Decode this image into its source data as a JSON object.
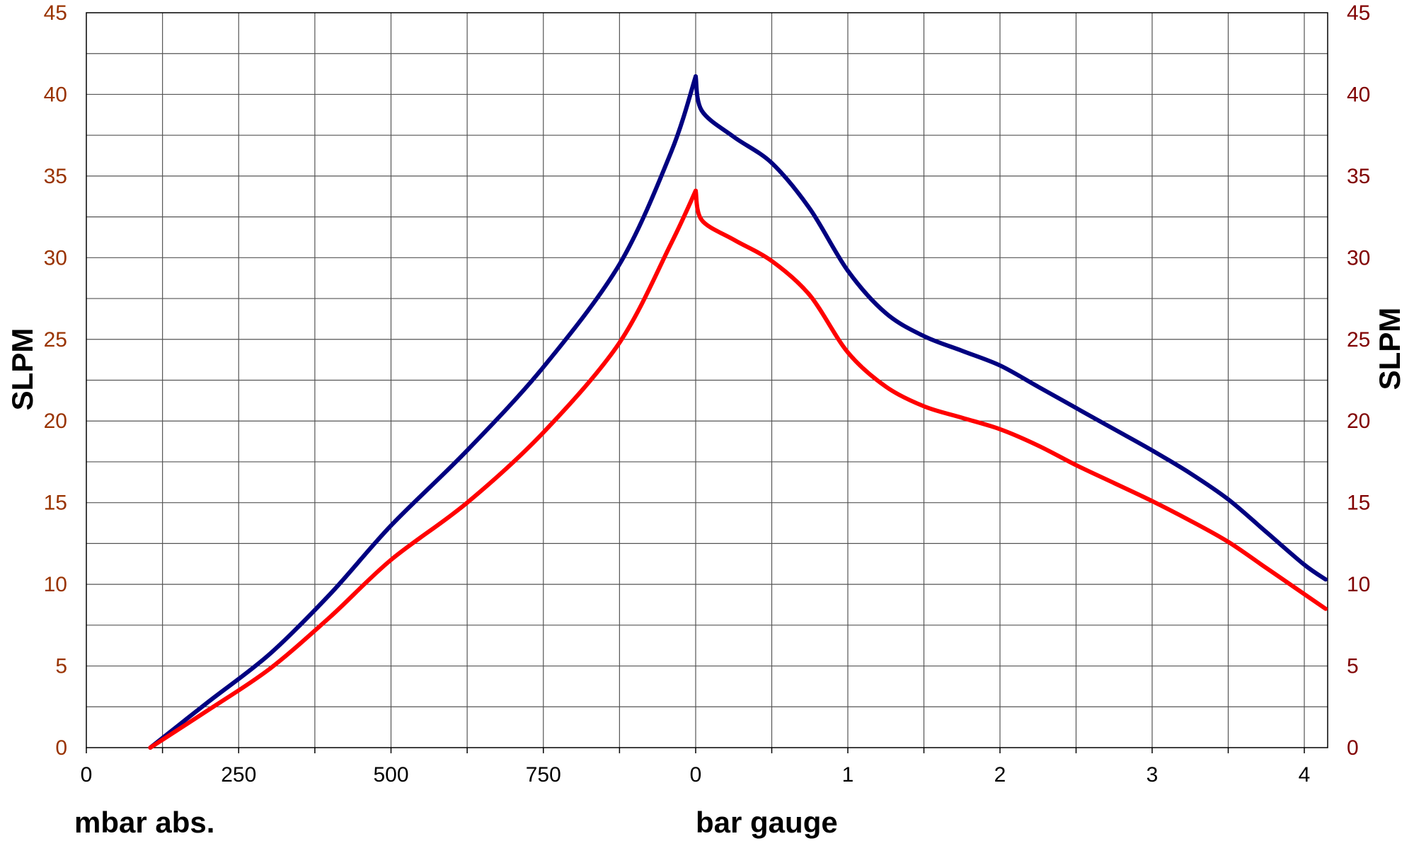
{
  "chart_data": {
    "type": "line",
    "y_axis": {
      "label_left": "SLPM",
      "label_right": "SLPM",
      "ylim": [
        0,
        45
      ],
      "ticks": [
        "0",
        "5",
        "10",
        "15",
        "20",
        "25",
        "30",
        "35",
        "40",
        "45"
      ],
      "left_tick_color": "#993300",
      "right_tick_color": "#800000"
    },
    "x_axis": {
      "vacuum_label": "mbar abs.",
      "vacuum_range": [
        0,
        1000
      ],
      "vacuum_ticks": [
        "0",
        "250",
        "500",
        "750"
      ],
      "pressure_label": "bar gauge",
      "pressure_range": [
        0,
        4.14
      ],
      "pressure_ticks": [
        "0",
        "1",
        "2",
        "3",
        "4"
      ]
    },
    "grid": true,
    "series": [
      {
        "color": "#000080",
        "vacuum_points": [
          [
            105,
            0
          ],
          [
            200,
            2.8
          ],
          [
            300,
            5.7
          ],
          [
            400,
            9.4
          ],
          [
            500,
            13.6
          ],
          [
            625,
            18.2
          ],
          [
            750,
            23.3
          ],
          [
            875,
            29.6
          ],
          [
            960,
            36.5
          ],
          [
            1000,
            41.1
          ]
        ],
        "pressure_points": [
          [
            0,
            41.1
          ],
          [
            0.04,
            39.0
          ],
          [
            0.25,
            37.4
          ],
          [
            0.5,
            35.8
          ],
          [
            0.75,
            33.0
          ],
          [
            1.0,
            29.2
          ],
          [
            1.25,
            26.6
          ],
          [
            1.5,
            25.2
          ],
          [
            1.75,
            24.3
          ],
          [
            2.0,
            23.4
          ],
          [
            2.25,
            22.1
          ],
          [
            2.5,
            20.8
          ],
          [
            2.75,
            19.5
          ],
          [
            3.0,
            18.2
          ],
          [
            3.25,
            16.8
          ],
          [
            3.5,
            15.2
          ],
          [
            3.75,
            13.2
          ],
          [
            4.0,
            11.2
          ],
          [
            4.14,
            10.3
          ]
        ]
      },
      {
        "color": "#ff0000",
        "vacuum_points": [
          [
            105,
            0
          ],
          [
            200,
            2.3
          ],
          [
            300,
            4.8
          ],
          [
            400,
            8.0
          ],
          [
            500,
            11.5
          ],
          [
            625,
            15.0
          ],
          [
            750,
            19.3
          ],
          [
            875,
            24.8
          ],
          [
            960,
            30.9
          ],
          [
            1000,
            34.1
          ]
        ],
        "pressure_points": [
          [
            0,
            34.1
          ],
          [
            0.04,
            32.3
          ],
          [
            0.25,
            31.1
          ],
          [
            0.5,
            29.8
          ],
          [
            0.75,
            27.7
          ],
          [
            1.0,
            24.2
          ],
          [
            1.25,
            22.1
          ],
          [
            1.5,
            20.9
          ],
          [
            1.75,
            20.2
          ],
          [
            2.0,
            19.5
          ],
          [
            2.25,
            18.5
          ],
          [
            2.5,
            17.3
          ],
          [
            2.75,
            16.2
          ],
          [
            3.0,
            15.1
          ],
          [
            3.25,
            13.9
          ],
          [
            3.5,
            12.6
          ],
          [
            3.75,
            11.0
          ],
          [
            4.0,
            9.4
          ],
          [
            4.14,
            8.5
          ]
        ]
      }
    ]
  }
}
